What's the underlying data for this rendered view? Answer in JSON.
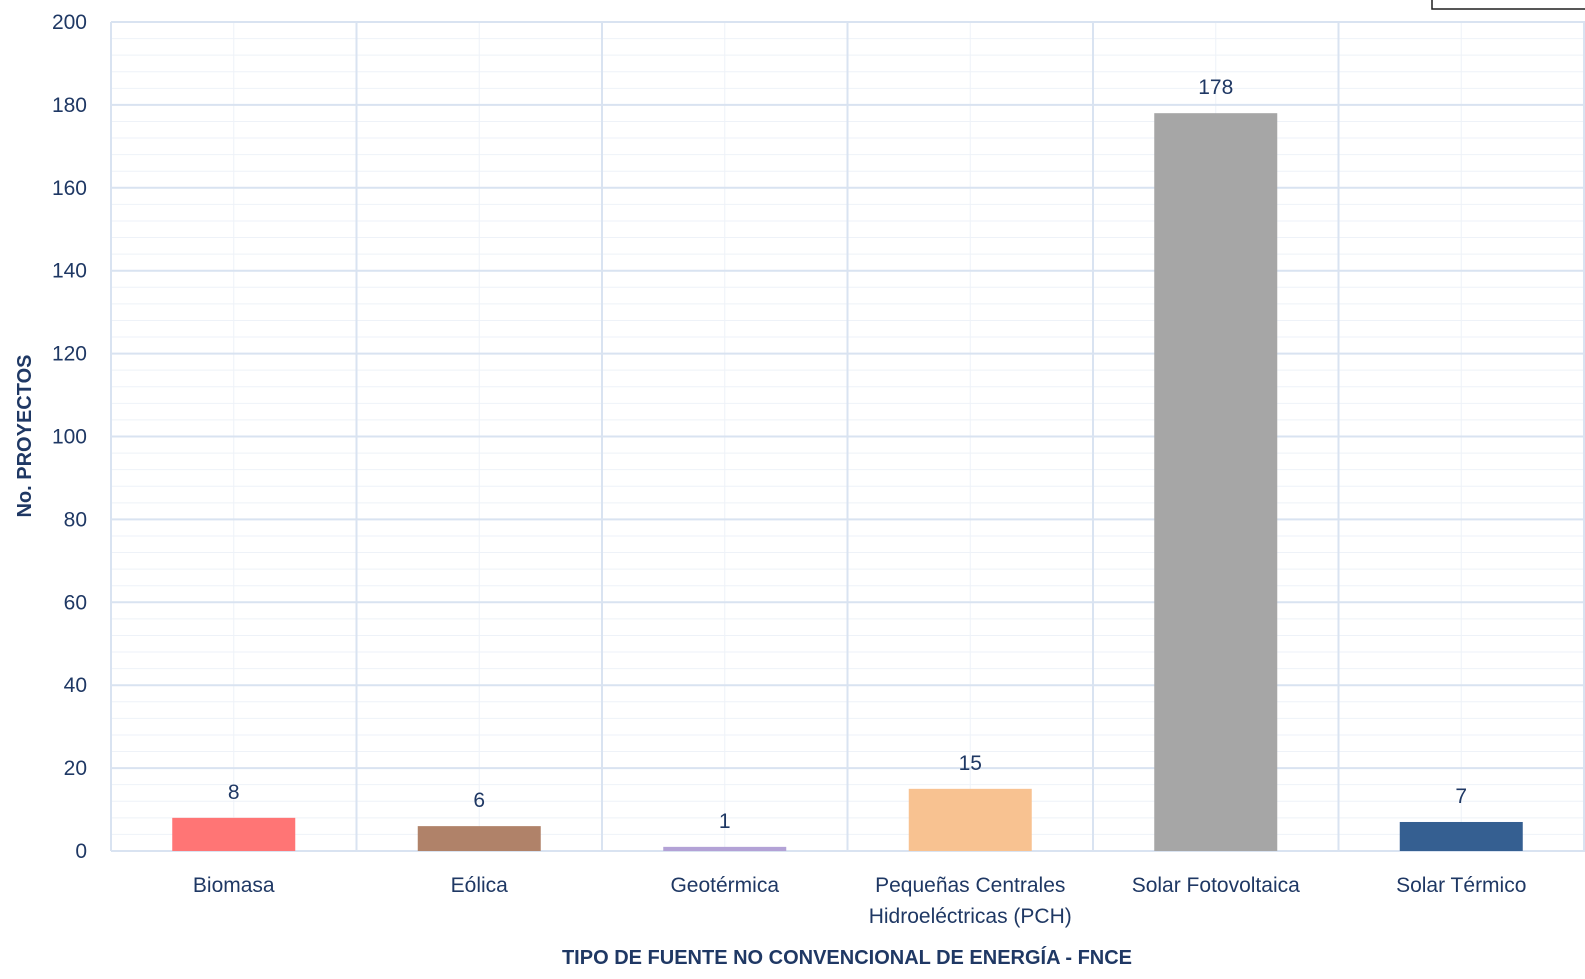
{
  "chart_data": {
    "type": "bar",
    "title": "",
    "xlabel": "TIPO DE FUENTE NO CONVENCIONAL DE ENERGÍA - FNCE",
    "ylabel": "No. PROYECTOS",
    "ylim": [
      0,
      200
    ],
    "yticks": [
      0,
      20,
      40,
      60,
      80,
      100,
      120,
      140,
      160,
      180,
      200
    ],
    "grid": true,
    "categories": [
      "Biomasa",
      "Eólica",
      "Geotérmica",
      "Pequeñas Centrales Hidroeléctricas (PCH)",
      "Solar Fotovoltaica",
      "Solar Térmico"
    ],
    "category_lines": [
      [
        "Biomasa"
      ],
      [
        "Eólica"
      ],
      [
        "Geotérmica"
      ],
      [
        "Pequeñas Centrales",
        "Hidroeléctricas (PCH)"
      ],
      [
        "Solar Fotovoltaica"
      ],
      [
        "Solar Térmico"
      ]
    ],
    "values": [
      8,
      6,
      1,
      15,
      178,
      7
    ],
    "colors": [
      "#ff7575",
      "#b08269",
      "#b3a2d6",
      "#f8c291",
      "#a6a6a6",
      "#355f91"
    ]
  }
}
